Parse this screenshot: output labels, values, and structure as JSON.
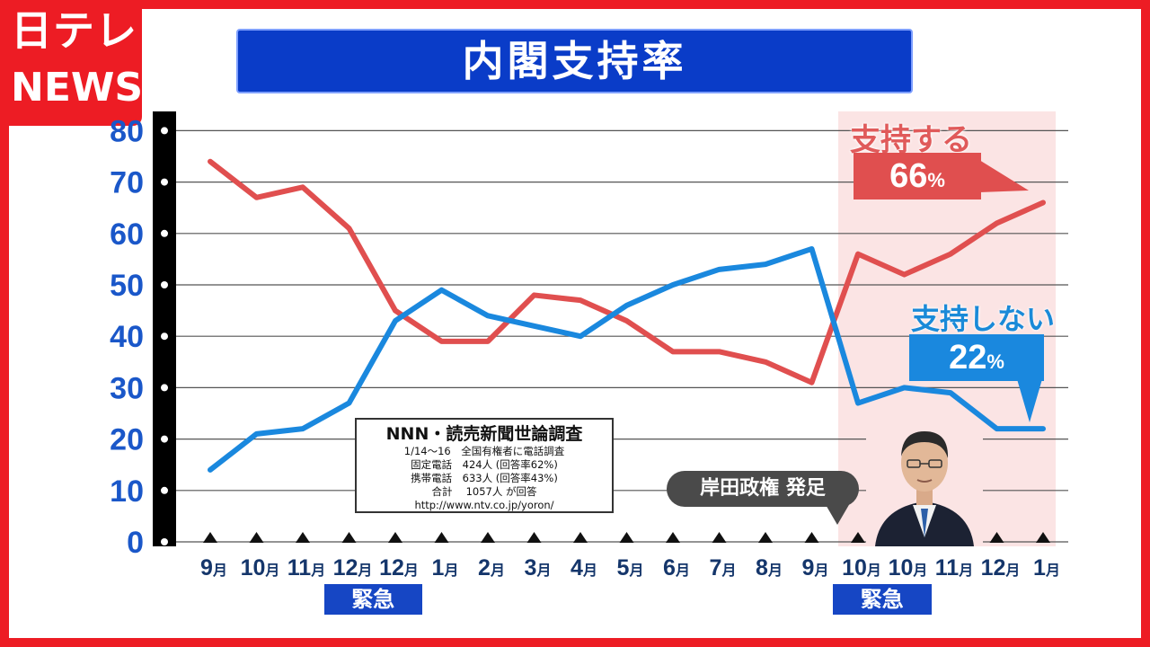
{
  "brand": {
    "line1": "日テレ",
    "line2": "NEWS",
    "color": "#ed1c24"
  },
  "title": "内閣支持率",
  "chart_data": {
    "type": "line",
    "title": "内閣支持率",
    "categories": [
      "9月",
      "10月",
      "11月",
      "12月",
      "12月",
      "1月",
      "2月",
      "3月",
      "4月",
      "5月",
      "6月",
      "7月",
      "8月",
      "9月",
      "10月",
      "10月",
      "11月",
      "12月",
      "1月"
    ],
    "y_ticks": [
      0,
      10,
      20,
      30,
      40,
      50,
      60,
      70,
      80
    ],
    "ylim": [
      0,
      80
    ],
    "grid": true,
    "series": [
      {
        "name": "支持する",
        "color": "#e04f4f",
        "values": [
          74,
          67,
          69,
          61,
          45,
          39,
          39,
          48,
          47,
          43,
          37,
          37,
          35,
          31,
          56,
          52,
          56,
          62,
          66
        ]
      },
      {
        "name": "支持しない",
        "color": "#1a88de",
        "values": [
          14,
          21,
          22,
          27,
          43,
          49,
          44,
          42,
          40,
          46,
          50,
          53,
          54,
          57,
          27,
          30,
          29,
          22,
          22
        ]
      }
    ],
    "highlight_start_index": 14,
    "highlight_color": "#fbe4e4"
  },
  "x_unit": "月",
  "emergency": [
    {
      "label": "緊急",
      "start_index": 3,
      "end_index": 4
    },
    {
      "label": "緊急",
      "start_index": 14,
      "end_index": 15
    }
  ],
  "callouts": {
    "support": {
      "label": "支持する",
      "value": "66",
      "unit": "%"
    },
    "oppose": {
      "label": "支持しない",
      "value": "22",
      "unit": "%"
    },
    "event": "岸田政権 発足"
  },
  "source": {
    "title": "NNN・読売新聞世論調査",
    "rows": [
      "1/14〜16　全国有権者に電話調査",
      "固定電話　424人 (回答率62%)",
      "携帯電話　633人 (回答率43%)",
      "合計　 1057人 が回答",
      "http://www.ntv.co.jp/yoron/"
    ]
  }
}
